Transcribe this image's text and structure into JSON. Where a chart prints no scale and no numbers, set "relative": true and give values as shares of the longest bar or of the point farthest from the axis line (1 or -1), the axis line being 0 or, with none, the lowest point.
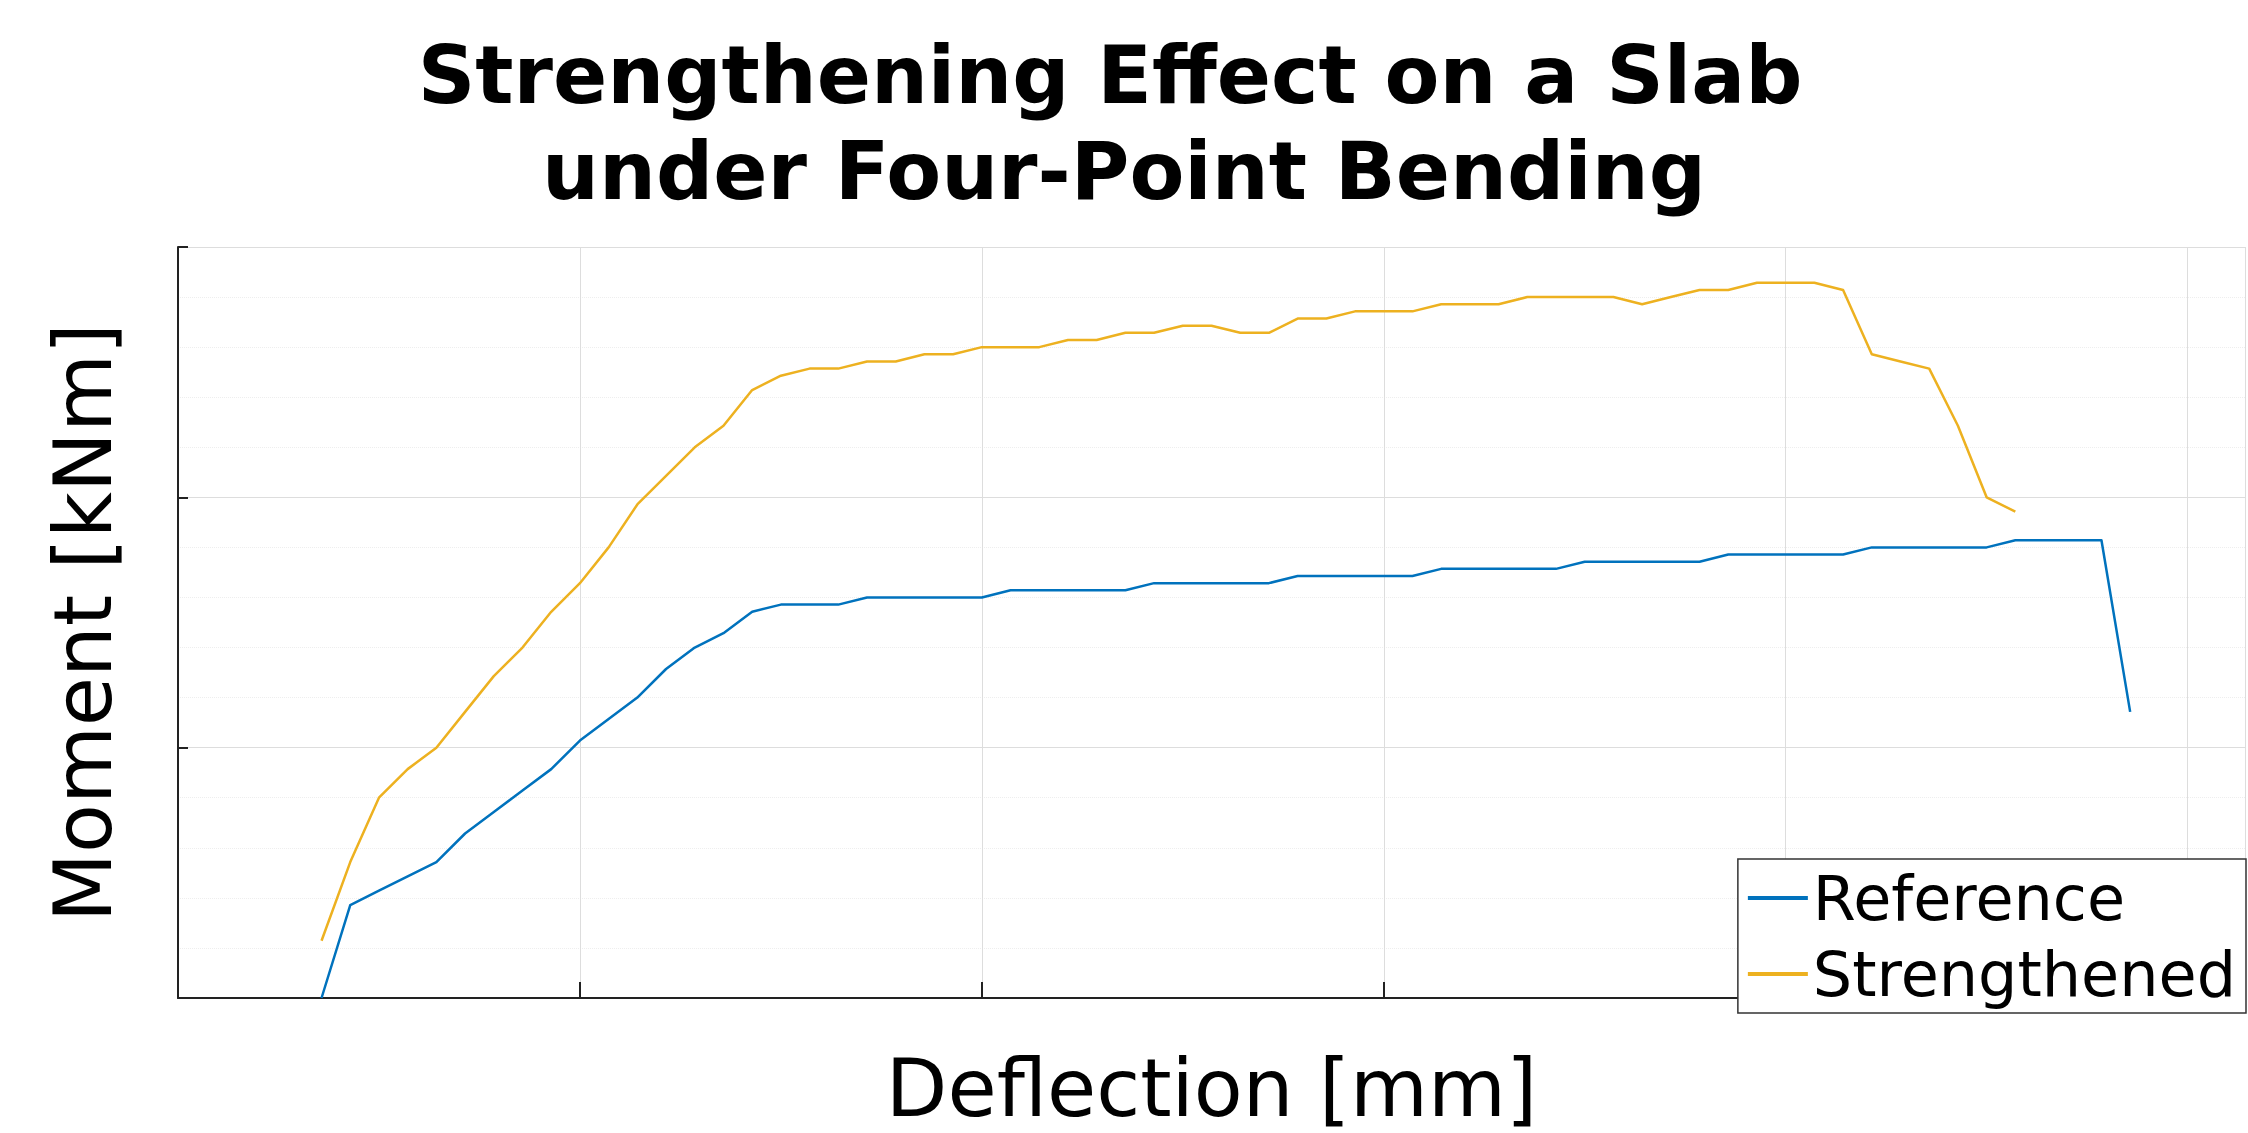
{
  "chart_data": {
    "type": "line",
    "title": "Strengthening Effect on a Slab under Four-Point Bending",
    "xlabel": "Deflection [mm]",
    "ylabel": "Moment [kNm]",
    "relative": true,
    "grid": true,
    "legend": "bottom right",
    "marker": "none",
    "line_style": "solid",
    "categories": [
      null,
      null,
      null,
      null,
      null,
      null,
      null,
      null,
      null,
      null,
      null,
      null,
      null,
      null,
      null,
      null,
      null,
      null,
      null,
      null,
      null,
      null,
      null,
      null,
      null,
      null,
      null,
      null,
      null,
      null,
      null,
      null,
      null,
      null,
      null,
      null,
      null,
      null,
      null,
      null,
      null,
      null,
      null,
      null,
      null,
      null,
      null,
      null,
      null,
      null,
      null,
      null,
      null,
      null,
      null,
      null,
      null,
      null,
      null,
      null,
      null,
      null,
      null,
      null,
      null,
      null,
      null,
      null,
      null,
      null,
      null,
      null,
      null
    ],
    "series": [
      {
        "name": "Reference",
        "color": "#0072bd",
        "values": [
          null,
          null,
          null,
          null,
          null,
          0.0,
          0.13,
          0.15,
          0.17,
          0.19,
          0.23,
          0.26,
          0.29,
          0.32,
          0.36,
          0.39,
          0.42,
          0.46,
          0.49,
          0.51,
          0.54,
          0.55,
          0.55,
          0.55,
          0.56,
          0.56,
          0.56,
          0.56,
          0.56,
          0.57,
          0.57,
          0.57,
          0.57,
          0.57,
          0.58,
          0.58,
          0.58,
          0.58,
          0.58,
          0.59,
          0.59,
          0.59,
          0.59,
          0.59,
          0.6,
          0.6,
          0.6,
          0.6,
          0.6,
          0.61,
          0.61,
          0.61,
          0.61,
          0.61,
          0.62,
          0.62,
          0.62,
          0.62,
          0.62,
          0.63,
          0.63,
          0.63,
          0.63,
          0.63,
          0.64,
          0.64,
          0.64,
          0.64,
          0.4,
          null,
          null,
          null,
          null
        ]
      },
      {
        "name": "Strengthened",
        "color": "#edb120",
        "values": [
          null,
          null,
          null,
          null,
          null,
          0.08,
          0.19,
          0.28,
          0.32,
          0.35,
          0.4,
          0.45,
          0.49,
          0.54,
          0.58,
          0.63,
          0.69,
          0.73,
          0.77,
          0.8,
          0.85,
          0.87,
          0.88,
          0.88,
          0.89,
          0.89,
          0.9,
          0.9,
          0.91,
          0.91,
          0.91,
          0.92,
          0.92,
          0.93,
          0.93,
          0.94,
          0.94,
          0.93,
          0.93,
          0.95,
          0.95,
          0.96,
          0.96,
          0.96,
          0.97,
          0.97,
          0.97,
          0.98,
          0.98,
          0.98,
          0.98,
          0.97,
          0.98,
          0.99,
          0.99,
          1.0,
          1.0,
          1.0,
          0.99,
          0.9,
          0.89,
          0.88,
          0.8,
          0.7,
          0.68,
          null,
          null,
          null,
          null,
          null,
          null,
          null,
          null
        ]
      }
    ]
  }
}
